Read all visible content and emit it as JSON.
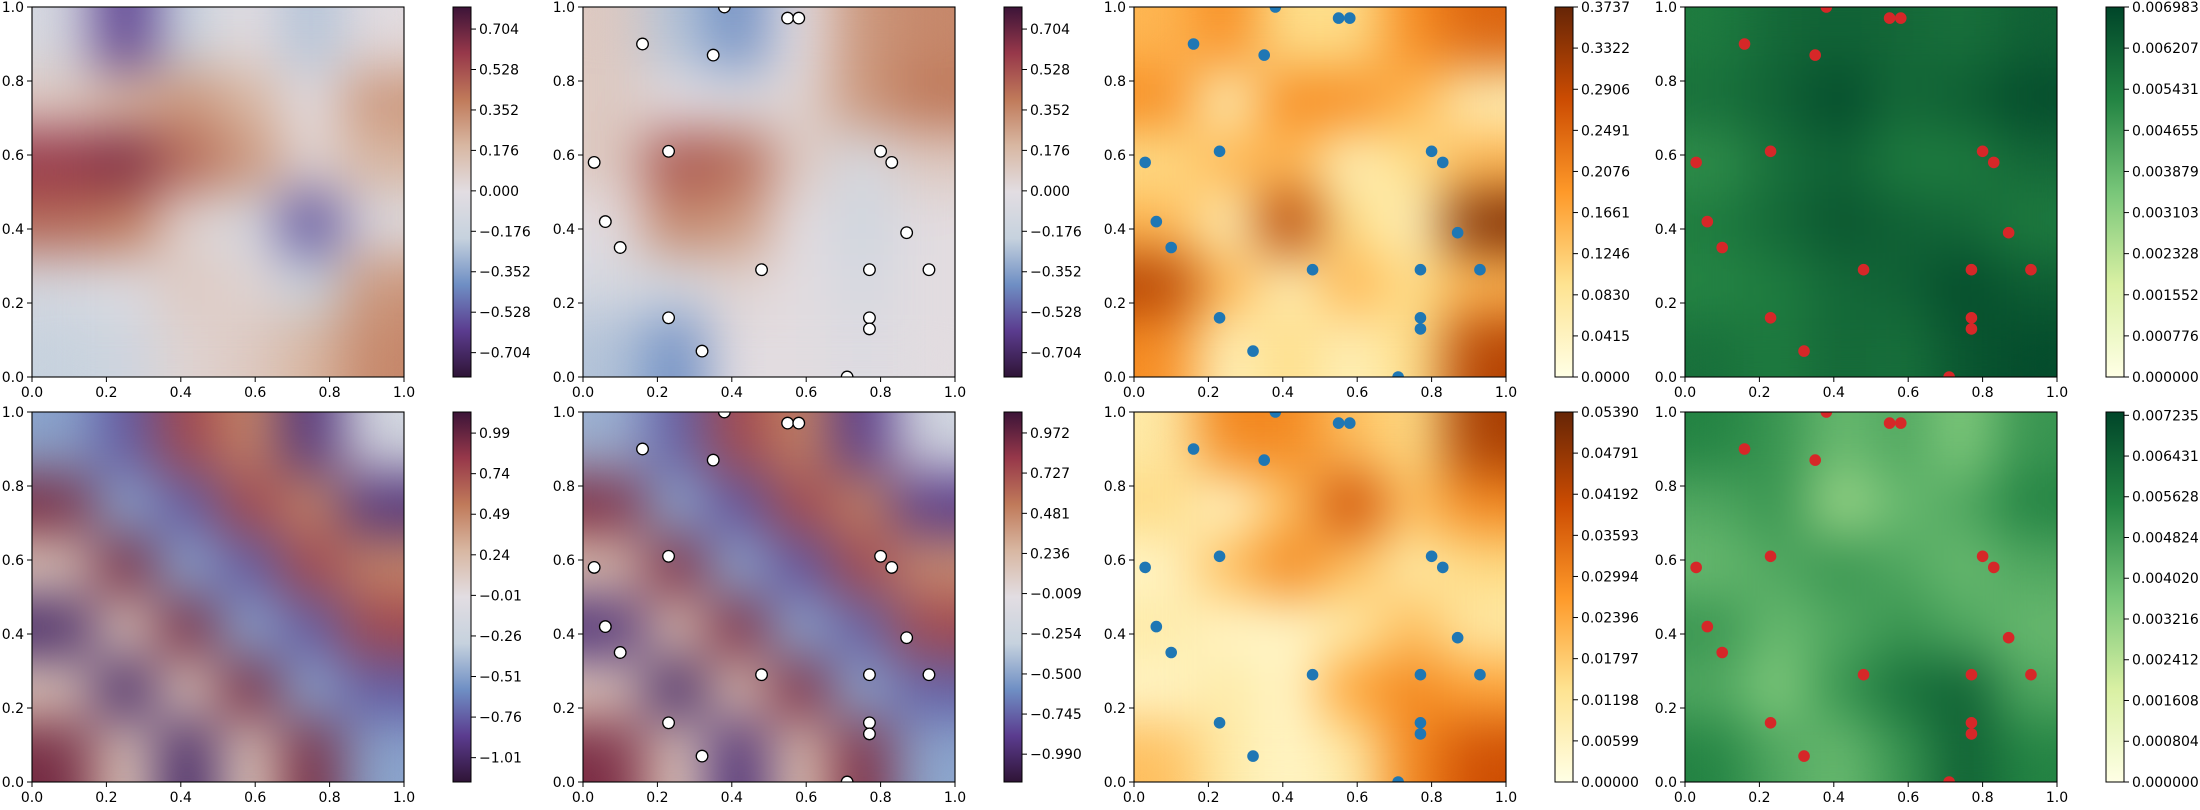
{
  "chart_data": {
    "xlim": [
      0,
      1
    ],
    "ylim": [
      0,
      1
    ],
    "xticks": [
      {
        "value": 0,
        "label": "0.0"
      },
      0.2,
      0.4,
      0.6,
      0.8,
      {
        "value": 1,
        "label": "1.0"
      }
    ],
    "yticks": [
      {
        "value": 0,
        "label": "0.0"
      },
      0.2,
      0.4,
      0.6,
      0.8,
      {
        "value": 1,
        "label": "1.0"
      }
    ],
    "points": {
      "x": [
        0.38,
        0.55,
        0.58,
        0.16,
        0.35,
        0.23,
        0.03,
        0.8,
        0.83,
        0.06,
        0.1,
        0.87,
        0.48,
        0.77,
        0.93,
        0.23,
        0.77,
        0.77,
        0.32,
        0.71
      ],
      "y": [
        1.0,
        0.97,
        0.97,
        0.9,
        0.87,
        0.61,
        0.58,
        0.61,
        0.58,
        0.42,
        0.35,
        0.39,
        0.29,
        0.29,
        0.29,
        0.16,
        0.16,
        0.13,
        0.07,
        0.0
      ]
    },
    "panels": [
      {
        "type": "heatmap",
        "colormap": [
          "#2f1436",
          "#5b3c8f",
          "#6f8fc4",
          "#c6d2de",
          "#e2dde2",
          "#d8b7a2",
          "#c07a5a",
          "#97384a",
          "#3c1438"
        ],
        "cbar_lim": [
          -0.81,
          0.8
        ],
        "cbar_ticks": [
          0.704,
          0.528,
          0.352,
          0.176,
          {
            "value": 0,
            "label": "0.000"
          },
          {
            "value": -0.176,
            "label": "−0.176"
          },
          {
            "value": -0.352,
            "label": "−0.352"
          },
          {
            "value": -0.528,
            "label": "−0.528"
          },
          {
            "value": -0.704,
            "label": "−0.704"
          }
        ],
        "z": [
          [
            -0.1,
            -0.6,
            -0.2,
            0,
            -0.25,
            0
          ],
          [
            0.1,
            0.2,
            0.3,
            0.2,
            0,
            0.3
          ],
          [
            0.6,
            0.65,
            0.45,
            0.3,
            0.05,
            0.2
          ],
          [
            0.45,
            0.4,
            0.05,
            -0.1,
            -0.55,
            -0.05
          ],
          [
            -0.1,
            -0.05,
            0.1,
            0.05,
            -0.2,
            0.3
          ],
          [
            -0.2,
            -0.15,
            0.05,
            0.1,
            0.2,
            0.35
          ]
        ]
      },
      {
        "type": "heatmap",
        "colormap": [
          "#2f1436",
          "#5b3c8f",
          "#6f8fc4",
          "#c6d2de",
          "#e2dde2",
          "#d8b7a2",
          "#c07a5a",
          "#97384a",
          "#3c1438"
        ],
        "cbar_lim": [
          -0.81,
          0.8
        ],
        "cbar_ticks": [
          0.704,
          0.528,
          0.352,
          0.176,
          {
            "value": 0,
            "label": "0.000"
          },
          {
            "value": -0.176,
            "label": "−0.176"
          },
          {
            "value": -0.352,
            "label": "−0.352"
          },
          {
            "value": -0.528,
            "label": "−0.528"
          },
          {
            "value": -0.704,
            "label": "−0.704"
          }
        ],
        "z": [
          [
            0.1,
            -0.25,
            -0.4,
            0,
            0.3,
            0.35
          ],
          [
            0.1,
            0,
            -0.05,
            0.05,
            0.3,
            0.4
          ],
          [
            0.1,
            0.5,
            0.45,
            0.1,
            -0.1,
            0.1
          ],
          [
            0,
            0.35,
            0.3,
            0,
            -0.15,
            0
          ],
          [
            -0.1,
            -0.1,
            0.05,
            0,
            -0.1,
            0
          ],
          [
            -0.25,
            -0.4,
            0,
            0,
            -0.05,
            0
          ]
        ],
        "point_color": "#ffffff",
        "point_edge": "#000000"
      },
      {
        "type": "heatmap",
        "colormap": [
          "#ffffe5",
          "#fee391",
          "#fe9929",
          "#cc4c02",
          "#662506"
        ],
        "cbar_lim": [
          0,
          0.3737
        ],
        "cbar_ticks": [
          0.3737,
          0.3322,
          0.2906,
          0.2491,
          0.2076,
          0.1661,
          0.1246,
          {
            "value": 0.083,
            "label": "0.0830"
          },
          0.0415,
          {
            "value": 0,
            "label": "0.0000"
          }
        ],
        "z": [
          [
            0.15,
            0.2,
            0.1,
            0.1,
            0.2,
            0.25
          ],
          [
            0.2,
            0.05,
            0.2,
            0.2,
            0.15,
            0.05
          ],
          [
            0.1,
            0.15,
            0.15,
            0.05,
            0.1,
            0.15
          ],
          [
            0.15,
            0.05,
            0.3,
            0.1,
            0.05,
            0.35
          ],
          [
            0.3,
            0.15,
            0.05,
            0.15,
            0.1,
            0.15
          ],
          [
            0.2,
            0.05,
            0.1,
            0.05,
            0.1,
            0.3
          ]
        ],
        "point_color": "#1f77b4"
      },
      {
        "type": "heatmap",
        "colormap": [
          "#ffffe5",
          "#d9f0a3",
          "#78c679",
          "#238443",
          "#004529"
        ],
        "cbar_lim": [
          0,
          0.006983
        ],
        "cbar_ticks": [
          0.006983,
          0.006207,
          0.005431,
          0.004655,
          0.003879,
          0.003103,
          0.002328,
          0.001552,
          0.000776,
          {
            "value": 0,
            "label": "0.000000"
          }
        ],
        "z": [
          [
            0.0055,
            0.006,
            0.0062,
            0.006,
            0.0058,
            0.0062
          ],
          [
            0.0058,
            0.0062,
            0.0068,
            0.006,
            0.0063,
            0.0068
          ],
          [
            0.005,
            0.0058,
            0.0062,
            0.0055,
            0.0055,
            0.006
          ],
          [
            0.0055,
            0.006,
            0.0065,
            0.0062,
            0.006,
            0.0055
          ],
          [
            0.0052,
            0.0055,
            0.006,
            0.0062,
            0.0068,
            0.0063
          ],
          [
            0.0058,
            0.0055,
            0.006,
            0.0058,
            0.0065,
            0.0068
          ]
        ],
        "point_color": "#d62728"
      },
      {
        "type": "heatmap",
        "colormap": [
          "#2f1436",
          "#5b3c8f",
          "#6f8fc4",
          "#c6d2de",
          "#e2dde2",
          "#d8b7a2",
          "#c07a5a",
          "#97384a",
          "#3c1438"
        ],
        "cbar_lim": [
          -1.16,
          1.12
        ],
        "cbar_ticks": [
          0.99,
          0.74,
          0.49,
          0.24,
          {
            "value": -0.01,
            "label": "−0.01"
          },
          {
            "value": -0.26,
            "label": "−0.26"
          },
          {
            "value": -0.51,
            "label": "−0.51"
          },
          {
            "value": -0.76,
            "label": "−0.76"
          },
          {
            "value": -1.01,
            "label": "−1.01"
          }
        ],
        "z": [
          [
            -0.5,
            -0.77,
            0.77,
            0.5,
            -0.94,
            -0.17
          ],
          [
            0.94,
            -0.5,
            -0.77,
            0.77,
            0.5,
            -0.94
          ],
          [
            0.17,
            0.94,
            -0.5,
            -0.77,
            0.77,
            0.5
          ],
          [
            -1,
            0.17,
            0.94,
            -0.5,
            -0.77,
            0.77
          ],
          [
            0.17,
            -1,
            0.17,
            0.94,
            -0.5,
            -0.77
          ],
          [
            0.94,
            0.17,
            -1,
            0.17,
            0.94,
            -0.5
          ]
        ]
      },
      {
        "type": "heatmap",
        "colormap": [
          "#2f1436",
          "#5b3c8f",
          "#6f8fc4",
          "#c6d2de",
          "#e2dde2",
          "#d8b7a2",
          "#c07a5a",
          "#97384a",
          "#3c1438"
        ],
        "cbar_lim": [
          -1.16,
          1.1
        ],
        "cbar_ticks": [
          0.972,
          0.727,
          0.481,
          0.236,
          {
            "value": -0.009,
            "label": "−0.009"
          },
          {
            "value": -0.254,
            "label": "−0.254"
          },
          {
            "value": -0.5,
            "label": "−0.500"
          },
          {
            "value": -0.745,
            "label": "−0.745"
          },
          {
            "value": -0.99,
            "label": "−0.990"
          }
        ],
        "z": [
          [
            -0.45,
            -0.75,
            0.75,
            0.5,
            -0.9,
            -0.2
          ],
          [
            0.9,
            -0.5,
            -0.8,
            0.75,
            0.5,
            -0.9
          ],
          [
            0.2,
            0.9,
            -0.5,
            -0.8,
            0.75,
            0.45
          ],
          [
            -0.95,
            0.2,
            0.9,
            -0.5,
            -0.75,
            0.75
          ],
          [
            0.15,
            -1,
            0.2,
            0.9,
            -0.5,
            -0.75
          ],
          [
            0.9,
            0.15,
            -0.95,
            0.2,
            0.9,
            -0.5
          ]
        ],
        "point_color": "#ffffff",
        "point_edge": "#000000"
      },
      {
        "type": "heatmap",
        "colormap": [
          "#ffffe5",
          "#fee391",
          "#fe9929",
          "#cc4c02",
          "#662506"
        ],
        "cbar_lim": [
          0,
          0.0539
        ],
        "cbar_ticks": [
          {
            "value": 0.0539,
            "label": "0.05390"
          },
          0.04791,
          0.04192,
          0.03593,
          0.02994,
          0.02396,
          0.01797,
          0.01198,
          0.00599,
          {
            "value": 0,
            "label": "0.00000"
          }
        ],
        "z": [
          [
            0.01,
            0.03,
            0.03,
            0.02,
            0.015,
            0.045
          ],
          [
            0.015,
            0.005,
            0.02,
            0.04,
            0.02,
            0.03
          ],
          [
            0.005,
            0.02,
            0.03,
            0.02,
            0.01,
            0.015
          ],
          [
            0.01,
            0.005,
            0.005,
            0.01,
            0.02,
            0.01
          ],
          [
            0.005,
            0.01,
            0.005,
            0.025,
            0.03,
            0.025
          ],
          [
            0.02,
            0.01,
            0.005,
            0.01,
            0.03,
            0.04
          ]
        ],
        "point_color": "#1f77b4"
      },
      {
        "type": "heatmap",
        "colormap": [
          "#ffffe5",
          "#d9f0a3",
          "#78c679",
          "#238443",
          "#004529"
        ],
        "cbar_lim": [
          0,
          0.0073
        ],
        "cbar_ticks": [
          0.007235,
          0.006431,
          0.005628,
          0.004824,
          {
            "value": 0.00402,
            "label": "0.004020"
          },
          0.003216,
          0.002412,
          0.001608,
          0.000804,
          {
            "value": 0,
            "label": "0.000000"
          }
        ],
        "z": [
          [
            0.0055,
            0.005,
            0.004,
            0.0045,
            0.0035,
            0.005
          ],
          [
            0.0045,
            0.005,
            0.003,
            0.004,
            0.0045,
            0.0055
          ],
          [
            0.004,
            0.0045,
            0.005,
            0.0045,
            0.004,
            0.0045
          ],
          [
            0.005,
            0.004,
            0.0045,
            0.005,
            0.0045,
            0.004
          ],
          [
            0.0045,
            0.0035,
            0.005,
            0.006,
            0.0065,
            0.0045
          ],
          [
            0.0055,
            0.0045,
            0.004,
            0.005,
            0.0065,
            0.0055
          ]
        ],
        "point_color": "#d62728"
      }
    ]
  }
}
